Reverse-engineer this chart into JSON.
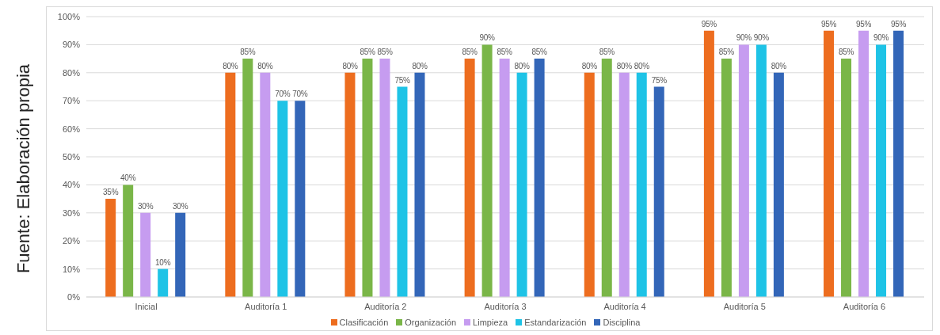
{
  "chart_data": {
    "type": "bar",
    "categories": [
      "Inicial",
      "Auditoría 1",
      "Auditoría 2",
      "Auditoría 3",
      "Auditoría 4",
      "Auditoría 5",
      "Auditoría 6"
    ],
    "series": [
      {
        "name": "Clasificación",
        "color": "#ed6d1f",
        "values": [
          35,
          80,
          80,
          85,
          80,
          95,
          95
        ],
        "value_labels": [
          "35%",
          "80%",
          "80%",
          "85%",
          "80%",
          "95%",
          "95%"
        ]
      },
      {
        "name": "Organización",
        "color": "#7ab648",
        "values": [
          40,
          85,
          85,
          90,
          85,
          85,
          85
        ],
        "value_labels": [
          "40%",
          "85%",
          "85%",
          "90%",
          "85%",
          "85%",
          "85%"
        ]
      },
      {
        "name": "Limpieza",
        "color": "#c69cf0",
        "values": [
          30,
          80,
          85,
          85,
          80,
          90,
          95
        ],
        "value_labels": [
          "30%",
          "80%",
          "85%",
          "85%",
          "80%",
          "90%",
          "95%"
        ]
      },
      {
        "name": "Estandarización",
        "color": "#1ec3e6",
        "values": [
          10,
          70,
          75,
          80,
          80,
          90,
          90
        ],
        "value_labels": [
          "10%",
          "70%",
          "75%",
          "80%",
          "80%",
          "90%",
          "90%"
        ]
      },
      {
        "name": "Disciplina",
        "color": "#3366b8",
        "values": [
          30,
          70,
          80,
          85,
          75,
          80,
          95
        ],
        "value_labels": [
          "30%",
          "70%",
          "80%",
          "85%",
          "75%",
          "80%",
          "95%"
        ]
      }
    ],
    "ylim": [
      0,
      100
    ],
    "yticks": [
      {
        "value": 0,
        "label": "0%"
      },
      {
        "value": 10,
        "label": "10%"
      },
      {
        "value": 20,
        "label": "20%"
      },
      {
        "value": 30,
        "label": "30%"
      },
      {
        "value": 40,
        "label": "40%"
      },
      {
        "value": 50,
        "label": "50%"
      },
      {
        "value": 60,
        "label": "60%"
      },
      {
        "value": 70,
        "label": "70%"
      },
      {
        "value": 80,
        "label": "80%"
      },
      {
        "value": 90,
        "label": "90%"
      },
      {
        "value": 100,
        "label": "100%"
      }
    ],
    "grid": "y",
    "legend": "bottom",
    "annotations": [
      "Fuente: Elaboración propia"
    ]
  }
}
